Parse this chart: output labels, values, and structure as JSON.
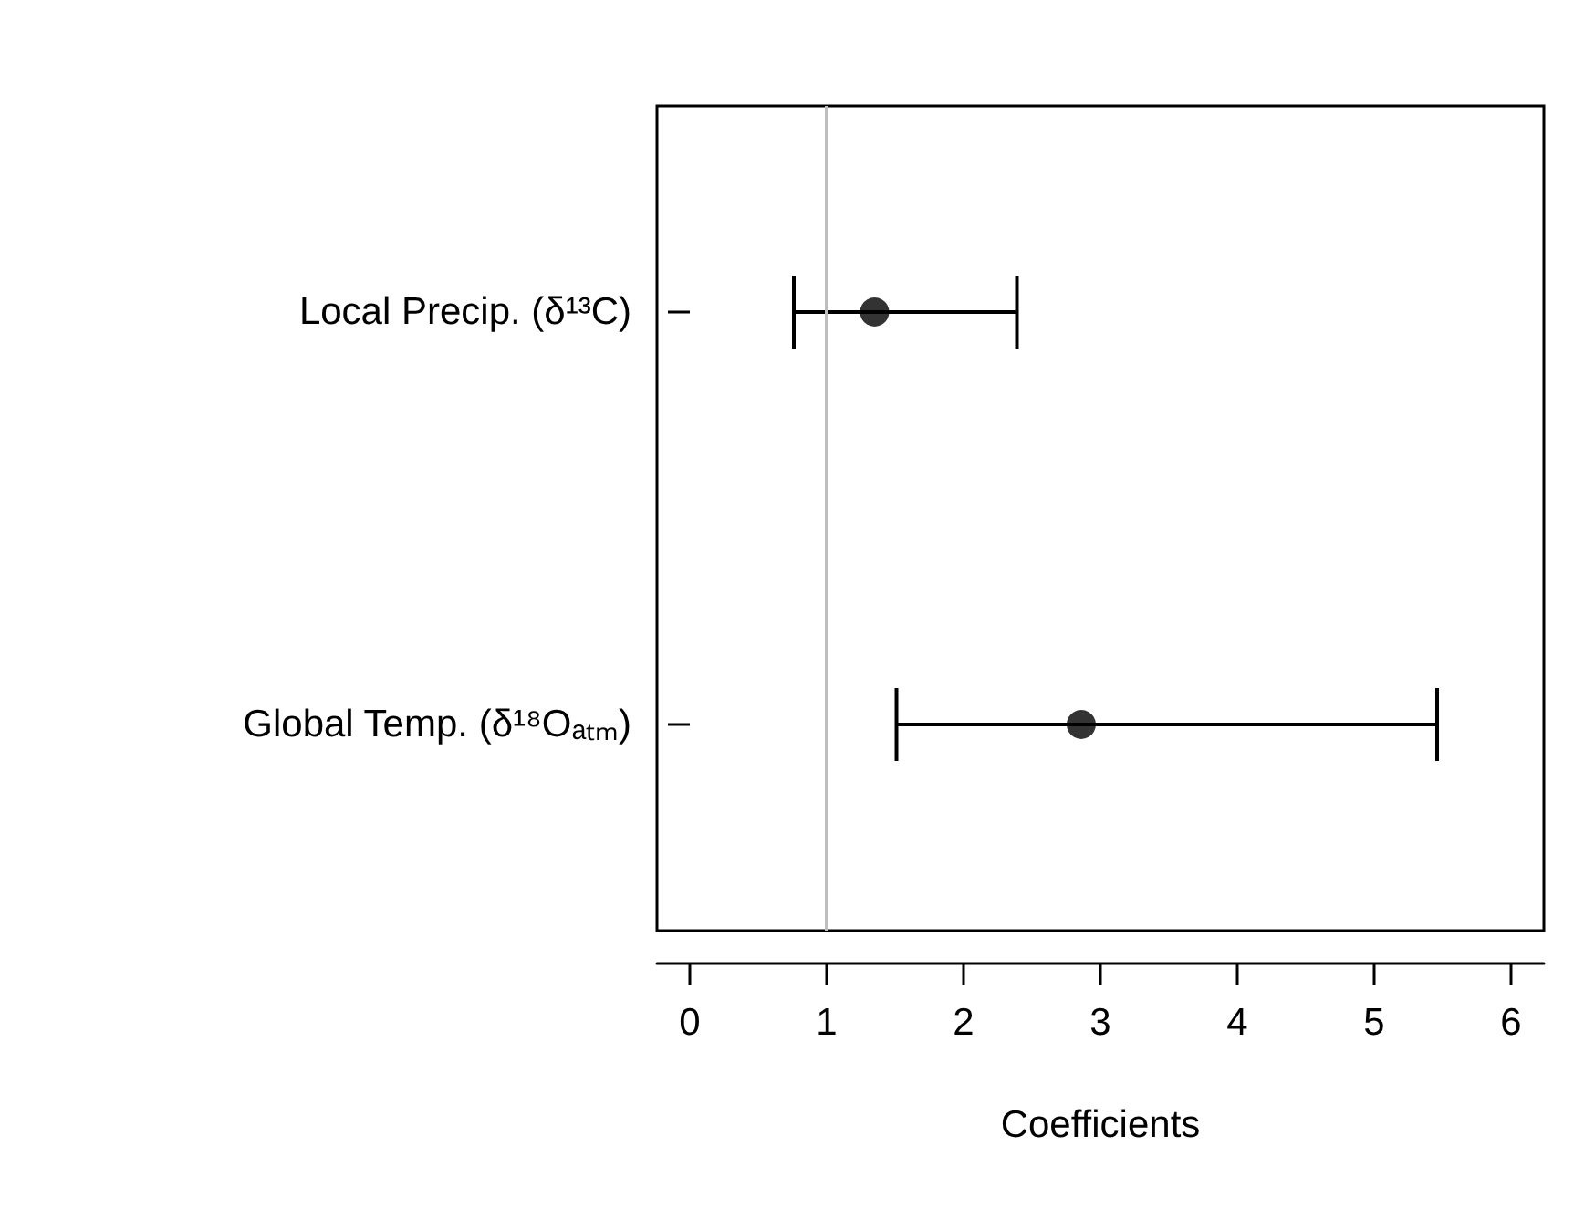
{
  "chart_data": {
    "type": "scatter",
    "orientation": "horizontal",
    "xlabel": "Coefficients",
    "categories": [
      "Local Precip. (δ¹³C)",
      "Global Temp. (δ¹⁸Oₐₜₘ)"
    ],
    "values": [
      1.35,
      2.86
    ],
    "errors": [
      [
        0.76,
        2.39
      ],
      [
        1.51,
        5.46
      ]
    ],
    "color": "#000000",
    "marker": "circle",
    "xlim": [
      -0.24,
      6.24
    ],
    "xticks": [
      0,
      1,
      2,
      3,
      4,
      5,
      6
    ],
    "ref_lines": [
      {
        "axis": "x",
        "value": 1,
        "color": "#bebebe"
      }
    ]
  }
}
